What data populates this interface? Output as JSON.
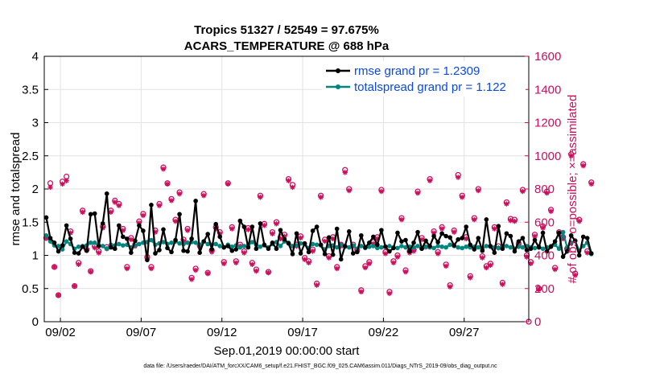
{
  "chart_data": {
    "type": "line",
    "title": "Tropics 51327 / 52549 = 97.675%",
    "subtitle": "ACARS_TEMPERATURE @ 688 hPa",
    "xlabel": "Sep.01,2019 00:00:00 start",
    "ylabel_left": "rmse and totalspread",
    "ylabel_right": "# of obs: o=possible; ×=assimilated",
    "footnote": "data file: /Users/raeder/DAI/ATM_forcXX/CAM6_setup/f.e21.FHIST_BGC.f09_025.CAM6assim.011/Diags_NTrS_2019-09/obs_diag_output.nc",
    "x_tick_labels": [
      "09/02",
      "09/07",
      "09/12",
      "09/17",
      "09/22",
      "09/27"
    ],
    "x_tick_days": [
      2,
      7,
      12,
      17,
      22,
      27
    ],
    "xlim": [
      1.0,
      31.0
    ],
    "ylim_left": [
      0,
      4
    ],
    "ylim_right": [
      0,
      1600
    ],
    "y_left_ticks": [
      "0",
      "0.5",
      "1",
      "1.5",
      "2",
      "2.5",
      "3",
      "3.5",
      "4"
    ],
    "y_right_ticks": [
      "0",
      "200",
      "400",
      "600",
      "800",
      "1000",
      "1200",
      "1400",
      "1600"
    ],
    "grid": true,
    "legend_position": "top-right",
    "colors": {
      "rmse": "#000000",
      "spread": "#00857f",
      "obs": "#cc0e5c",
      "right_axis": "#cc0e5c",
      "legend_text": "#0a49e6"
    },
    "series": [
      {
        "name": "rmse grand pr = 1.2309",
        "axis": "left",
        "values": [
          1.57,
          1.26,
          1.19,
          1.06,
          1.15,
          1.45,
          1.25,
          1.04,
          1.03,
          1.13,
          1.07,
          1.62,
          1.63,
          1.14,
          1.48,
          1.93,
          1.12,
          1.1,
          1.45,
          1.28,
          1.25,
          1.04,
          1.22,
          1.45,
          1.37,
          0.93,
          1.76,
          1.03,
          1.08,
          1.39,
          1.11,
          1.05,
          1.23,
          1.62,
          1.07,
          1.06,
          1.25,
          1.82,
          1.04,
          1.21,
          1.32,
          1.09,
          1.47,
          1.28,
          1.12,
          1.14,
          1.07,
          1.09,
          1.52,
          1.43,
          1.12,
          1.43,
          1.1,
          1.48,
          1.16,
          1.1,
          1.19,
          1.1,
          1.38,
          1.24,
          1.18,
          1.02,
          1.33,
          1.03,
          1.18,
          1.05,
          1.37,
          1.43,
          1.16,
          1.02,
          1.27,
          1.01,
          1.4,
          0.94,
          1.14,
          1.36,
          1.03,
          1.05,
          1.3,
          1.12,
          1.19,
          1.28,
          1.16,
          1.38,
          1.13,
          1.06,
          1.11,
          1.34,
          1.21,
          1.23,
          1.06,
          1.19,
          1.35,
          1.1,
          1.22,
          1.14,
          1.29,
          1.2,
          1.33,
          1.29,
          1.27,
          1.15,
          1.24,
          1.26,
          1.43,
          1.16,
          1.09,
          1.26,
          1.07,
          1.54,
          1.14,
          1.04,
          1.44,
          1.1,
          1.33,
          1.29,
          1.06,
          1.21,
          1.26,
          1.08,
          1.1,
          1.23,
          1.12,
          1.34,
          1.06,
          1.13,
          1.21,
          1.34,
          0.98,
          1.06,
          1.3,
          1.22,
          1.0,
          1.28,
          1.26,
          1.03
        ]
      },
      {
        "name": "totalspread grand pr = 1.122",
        "axis": "left",
        "values": [
          1.3,
          1.21,
          1.15,
          1.14,
          1.09,
          1.21,
          1.17,
          1.1,
          1.13,
          1.14,
          1.15,
          1.19,
          1.19,
          1.15,
          1.14,
          1.1,
          1.16,
          1.15,
          1.17,
          1.15,
          1.16,
          1.12,
          1.15,
          1.17,
          1.19,
          1.2,
          1.23,
          1.16,
          1.18,
          1.2,
          1.17,
          1.19,
          1.21,
          1.18,
          1.17,
          1.19,
          1.2,
          1.19,
          1.16,
          1.21,
          1.17,
          1.16,
          1.17,
          1.14,
          1.12,
          1.16,
          1.13,
          1.15,
          1.12,
          1.14,
          1.15,
          1.2,
          1.16,
          1.13,
          1.15,
          1.12,
          1.17,
          1.2,
          1.14,
          1.21,
          1.19,
          1.14,
          1.15,
          1.18,
          1.17,
          1.11,
          1.17,
          1.16,
          1.15,
          1.09,
          1.14,
          1.15,
          1.12,
          1.16,
          1.13,
          1.12,
          1.15,
          1.1,
          1.14,
          1.11,
          1.13,
          1.14,
          1.11,
          1.12,
          1.13,
          1.14,
          1.12,
          1.11,
          1.14,
          1.12,
          1.13,
          1.12,
          1.14,
          1.1,
          1.13,
          1.12,
          1.11,
          1.14,
          1.13,
          1.12,
          1.16,
          1.14,
          1.12,
          1.11,
          1.13,
          1.12,
          1.13,
          1.12,
          1.1,
          1.14,
          1.13,
          1.12,
          1.11,
          1.13,
          1.14,
          1.12,
          1.1,
          1.13,
          1.12,
          1.14,
          1.12,
          1.11,
          1.13,
          1.1,
          1.12,
          1.14,
          1.16,
          1.1,
          1.35,
          1.12,
          1.19,
          1.22,
          1.07,
          1.14,
          1.19,
          1.02
        ]
      }
    ],
    "obs_count": {
      "possible": [
        505,
        835,
        330,
        160,
        845,
        875,
        545,
        215,
        355,
        670,
        435,
        305,
        455,
        425,
        575,
        450,
        670,
        730,
        710,
        560,
        330,
        505,
        465,
        605,
        650,
        390,
        330,
        550,
        710,
        930,
        835,
        740,
        615,
        780,
        495,
        560,
        265,
        320,
        460,
        770,
        295,
        430,
        570,
        540,
        360,
        835,
        570,
        365,
        465,
        425,
        565,
        355,
        315,
        760,
        590,
        300,
        540,
        600,
        510,
        525,
        860,
        825,
        465,
        515,
        385,
        365,
        435,
        230,
        760,
        495,
        395,
        510,
        330,
        465,
        915,
        800,
        465,
        435,
        190,
        335,
        360,
        480,
        510,
        795,
        420,
        180,
        365,
        400,
        625,
        310,
        425,
        435,
        785,
        505,
        460,
        860,
        545,
        420,
        570,
        345,
        220,
        550,
        885,
        760,
        510,
        275,
        625,
        800,
        395,
        335,
        350,
        570,
        455,
        235,
        720,
        620,
        615,
        470,
        795,
        400,
        360,
        525,
        200,
        575,
        785,
        675,
        325,
        540,
        510,
        440,
        1010,
        290,
        615,
        950,
        425,
        840
      ],
      "assimilated": [
        505,
        810,
        330,
        160,
        830,
        850,
        535,
        215,
        345,
        660,
        430,
        300,
        445,
        415,
        565,
        440,
        660,
        720,
        700,
        550,
        320,
        495,
        455,
        595,
        640,
        380,
        320,
        540,
        700,
        920,
        830,
        730,
        605,
        770,
        485,
        550,
        255,
        310,
        450,
        760,
        290,
        420,
        560,
        530,
        350,
        830,
        560,
        355,
        455,
        415,
        555,
        345,
        305,
        750,
        580,
        295,
        530,
        590,
        500,
        515,
        850,
        810,
        455,
        505,
        375,
        355,
        425,
        220,
        750,
        485,
        385,
        500,
        320,
        455,
        900,
        790,
        455,
        425,
        180,
        325,
        350,
        470,
        500,
        785,
        410,
        170,
        355,
        390,
        615,
        300,
        415,
        425,
        775,
        495,
        450,
        850,
        535,
        410,
        560,
        335,
        210,
        540,
        870,
        750,
        500,
        265,
        615,
        790,
        385,
        325,
        340,
        560,
        445,
        225,
        710,
        610,
        605,
        460,
        785,
        390,
        350,
        515,
        195,
        565,
        775,
        665,
        315,
        530,
        500,
        430,
        1000,
        280,
        605,
        940,
        415,
        830
      ]
    },
    "final_marker": {
      "count": 0,
      "day": 31.0
    }
  }
}
